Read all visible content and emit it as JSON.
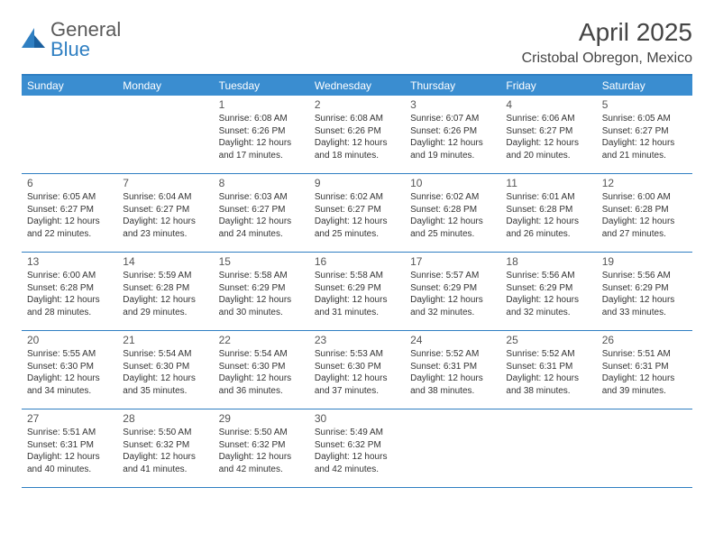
{
  "colors": {
    "header_bg": "#3a8dd0",
    "border": "#2f7fc2",
    "logo_gray": "#5a5a5a",
    "logo_blue": "#2f7fc2",
    "title_color": "#444444",
    "day_text": "#333333"
  },
  "logo": {
    "word1": "General",
    "word2": "Blue"
  },
  "title": "April 2025",
  "location": "Cristobal Obregon, Mexico",
  "weekdays": [
    "Sunday",
    "Monday",
    "Tuesday",
    "Wednesday",
    "Thursday",
    "Friday",
    "Saturday"
  ],
  "weeks": [
    [
      null,
      null,
      {
        "n": "1",
        "sr": "Sunrise: 6:08 AM",
        "ss": "Sunset: 6:26 PM",
        "dl": "Daylight: 12 hours and 17 minutes."
      },
      {
        "n": "2",
        "sr": "Sunrise: 6:08 AM",
        "ss": "Sunset: 6:26 PM",
        "dl": "Daylight: 12 hours and 18 minutes."
      },
      {
        "n": "3",
        "sr": "Sunrise: 6:07 AM",
        "ss": "Sunset: 6:26 PM",
        "dl": "Daylight: 12 hours and 19 minutes."
      },
      {
        "n": "4",
        "sr": "Sunrise: 6:06 AM",
        "ss": "Sunset: 6:27 PM",
        "dl": "Daylight: 12 hours and 20 minutes."
      },
      {
        "n": "5",
        "sr": "Sunrise: 6:05 AM",
        "ss": "Sunset: 6:27 PM",
        "dl": "Daylight: 12 hours and 21 minutes."
      }
    ],
    [
      {
        "n": "6",
        "sr": "Sunrise: 6:05 AM",
        "ss": "Sunset: 6:27 PM",
        "dl": "Daylight: 12 hours and 22 minutes."
      },
      {
        "n": "7",
        "sr": "Sunrise: 6:04 AM",
        "ss": "Sunset: 6:27 PM",
        "dl": "Daylight: 12 hours and 23 minutes."
      },
      {
        "n": "8",
        "sr": "Sunrise: 6:03 AM",
        "ss": "Sunset: 6:27 PM",
        "dl": "Daylight: 12 hours and 24 minutes."
      },
      {
        "n": "9",
        "sr": "Sunrise: 6:02 AM",
        "ss": "Sunset: 6:27 PM",
        "dl": "Daylight: 12 hours and 25 minutes."
      },
      {
        "n": "10",
        "sr": "Sunrise: 6:02 AM",
        "ss": "Sunset: 6:28 PM",
        "dl": "Daylight: 12 hours and 25 minutes."
      },
      {
        "n": "11",
        "sr": "Sunrise: 6:01 AM",
        "ss": "Sunset: 6:28 PM",
        "dl": "Daylight: 12 hours and 26 minutes."
      },
      {
        "n": "12",
        "sr": "Sunrise: 6:00 AM",
        "ss": "Sunset: 6:28 PM",
        "dl": "Daylight: 12 hours and 27 minutes."
      }
    ],
    [
      {
        "n": "13",
        "sr": "Sunrise: 6:00 AM",
        "ss": "Sunset: 6:28 PM",
        "dl": "Daylight: 12 hours and 28 minutes."
      },
      {
        "n": "14",
        "sr": "Sunrise: 5:59 AM",
        "ss": "Sunset: 6:28 PM",
        "dl": "Daylight: 12 hours and 29 minutes."
      },
      {
        "n": "15",
        "sr": "Sunrise: 5:58 AM",
        "ss": "Sunset: 6:29 PM",
        "dl": "Daylight: 12 hours and 30 minutes."
      },
      {
        "n": "16",
        "sr": "Sunrise: 5:58 AM",
        "ss": "Sunset: 6:29 PM",
        "dl": "Daylight: 12 hours and 31 minutes."
      },
      {
        "n": "17",
        "sr": "Sunrise: 5:57 AM",
        "ss": "Sunset: 6:29 PM",
        "dl": "Daylight: 12 hours and 32 minutes."
      },
      {
        "n": "18",
        "sr": "Sunrise: 5:56 AM",
        "ss": "Sunset: 6:29 PM",
        "dl": "Daylight: 12 hours and 32 minutes."
      },
      {
        "n": "19",
        "sr": "Sunrise: 5:56 AM",
        "ss": "Sunset: 6:29 PM",
        "dl": "Daylight: 12 hours and 33 minutes."
      }
    ],
    [
      {
        "n": "20",
        "sr": "Sunrise: 5:55 AM",
        "ss": "Sunset: 6:30 PM",
        "dl": "Daylight: 12 hours and 34 minutes."
      },
      {
        "n": "21",
        "sr": "Sunrise: 5:54 AM",
        "ss": "Sunset: 6:30 PM",
        "dl": "Daylight: 12 hours and 35 minutes."
      },
      {
        "n": "22",
        "sr": "Sunrise: 5:54 AM",
        "ss": "Sunset: 6:30 PM",
        "dl": "Daylight: 12 hours and 36 minutes."
      },
      {
        "n": "23",
        "sr": "Sunrise: 5:53 AM",
        "ss": "Sunset: 6:30 PM",
        "dl": "Daylight: 12 hours and 37 minutes."
      },
      {
        "n": "24",
        "sr": "Sunrise: 5:52 AM",
        "ss": "Sunset: 6:31 PM",
        "dl": "Daylight: 12 hours and 38 minutes."
      },
      {
        "n": "25",
        "sr": "Sunrise: 5:52 AM",
        "ss": "Sunset: 6:31 PM",
        "dl": "Daylight: 12 hours and 38 minutes."
      },
      {
        "n": "26",
        "sr": "Sunrise: 5:51 AM",
        "ss": "Sunset: 6:31 PM",
        "dl": "Daylight: 12 hours and 39 minutes."
      }
    ],
    [
      {
        "n": "27",
        "sr": "Sunrise: 5:51 AM",
        "ss": "Sunset: 6:31 PM",
        "dl": "Daylight: 12 hours and 40 minutes."
      },
      {
        "n": "28",
        "sr": "Sunrise: 5:50 AM",
        "ss": "Sunset: 6:32 PM",
        "dl": "Daylight: 12 hours and 41 minutes."
      },
      {
        "n": "29",
        "sr": "Sunrise: 5:50 AM",
        "ss": "Sunset: 6:32 PM",
        "dl": "Daylight: 12 hours and 42 minutes."
      },
      {
        "n": "30",
        "sr": "Sunrise: 5:49 AM",
        "ss": "Sunset: 6:32 PM",
        "dl": "Daylight: 12 hours and 42 minutes."
      },
      null,
      null,
      null
    ]
  ]
}
